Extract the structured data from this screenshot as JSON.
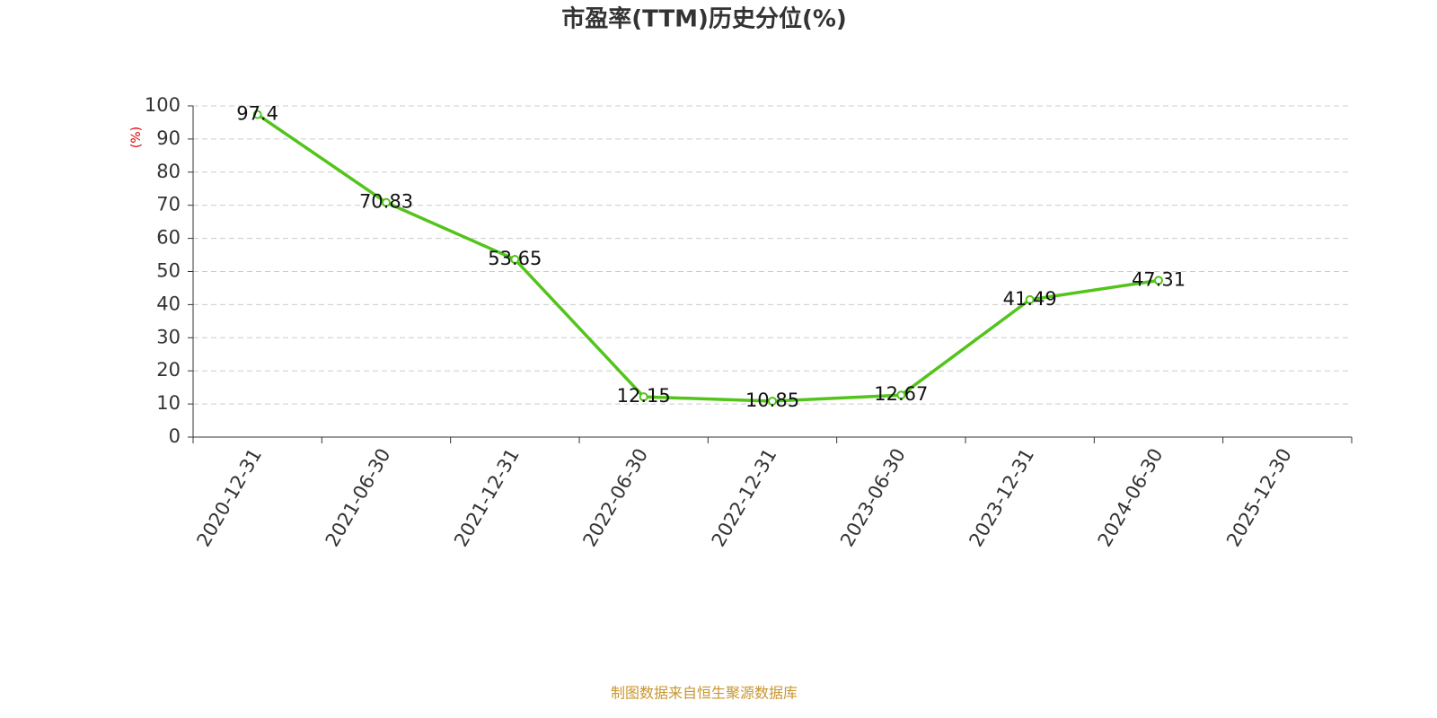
{
  "chart_data": {
    "type": "line",
    "title": "市盈率(TTM)历史分位(%)",
    "y_label": "(%)",
    "categories": [
      "2020-12-31",
      "2021-06-30",
      "2021-12-31",
      "2022-06-30",
      "2022-12-31",
      "2023-06-30",
      "2023-12-31",
      "2024-06-30",
      "2025-12-30"
    ],
    "series": [
      {
        "name": "市盈率(TTM)历史分位",
        "color": "#52c41a",
        "values": [
          97.4,
          70.83,
          53.65,
          12.15,
          10.85,
          12.67,
          41.49,
          47.31,
          null
        ]
      }
    ],
    "ylim": [
      0,
      100
    ],
    "yticks": [
      0,
      10,
      20,
      30,
      40,
      50,
      60,
      70,
      80,
      90,
      100
    ],
    "grid": true,
    "source": "制图数据来自恒生聚源数据库"
  }
}
